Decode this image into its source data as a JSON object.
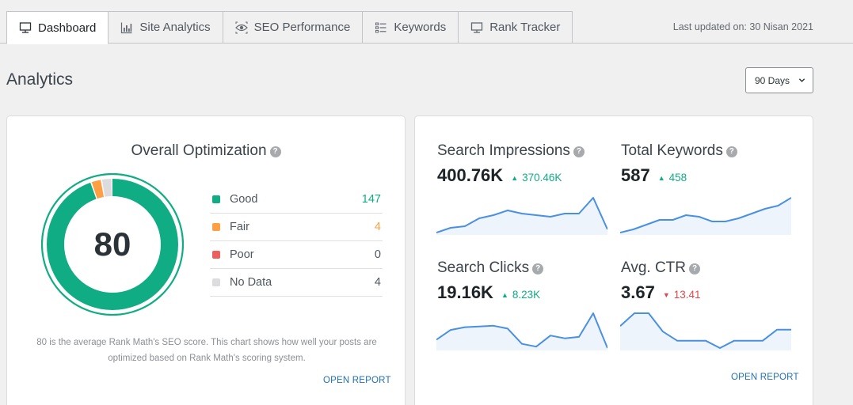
{
  "tabs": [
    {
      "label": "Dashboard",
      "icon": "monitor-icon",
      "active": true
    },
    {
      "label": "Site Analytics",
      "icon": "bar-chart-icon"
    },
    {
      "label": "SEO Performance",
      "icon": "eye-icon"
    },
    {
      "label": "Keywords",
      "icon": "list-icon"
    },
    {
      "label": "Rank Tracker",
      "icon": "monitor-icon"
    }
  ],
  "last_updated": "Last updated on: 30 Nisan 2021",
  "header": {
    "title": "Analytics",
    "days_selected": "90 Days"
  },
  "optimization": {
    "title": "Overall Optimization",
    "score": "80",
    "legend": [
      {
        "label": "Good",
        "value": "147",
        "color": "#10ac84"
      },
      {
        "label": "Fair",
        "value": "4",
        "color": "#ff9f43"
      },
      {
        "label": "Poor",
        "value": "0",
        "color": "#ed5e5e"
      },
      {
        "label": "No Data",
        "value": "4",
        "color": "#dcdcde"
      }
    ],
    "description": "80 is the average Rank Math's SEO score. This chart shows how well your posts are optimized based on Rank Math's scoring system.",
    "open_report": "OPEN REPORT"
  },
  "metrics": [
    {
      "title": "Search Impressions",
      "value": "400.76K",
      "delta": "370.46K",
      "trend": "up",
      "spark": [
        2,
        5,
        6,
        11,
        13,
        16,
        14,
        13,
        12,
        14,
        14,
        24,
        4
      ]
    },
    {
      "title": "Total Keywords",
      "value": "587",
      "delta": "458",
      "trend": "up",
      "spark": [
        2,
        4,
        7,
        10,
        10,
        13,
        12,
        9,
        9,
        11,
        14,
        17,
        19,
        24
      ]
    },
    {
      "title": "Search Clicks",
      "value": "19.16K",
      "delta": "8.23K",
      "trend": "up",
      "spark": [
        8,
        15,
        17,
        17.5,
        18,
        16,
        5,
        3,
        11,
        9,
        10,
        27,
        2
      ]
    },
    {
      "title": "Avg. CTR",
      "value": "3.67",
      "delta": "13.41",
      "trend": "down",
      "spark": [
        10,
        17,
        17,
        7,
        2,
        2,
        2,
        -2,
        2,
        2,
        2,
        8,
        8
      ]
    }
  ],
  "metrics_open_report": "OPEN REPORT",
  "colors": {
    "accent": "#10ac84",
    "link": "#2271b1",
    "line": "#4a90e2",
    "down": "#e0474c"
  }
}
